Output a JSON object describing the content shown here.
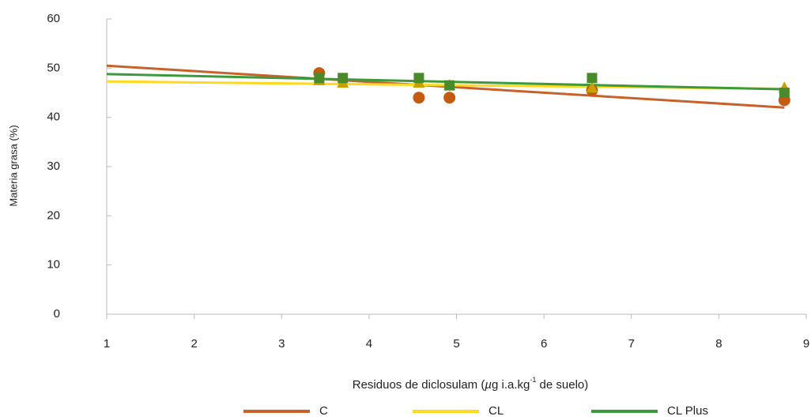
{
  "chart_data": {
    "type": "scatter",
    "x_label_parts": [
      "Residuos de diclosulam (",
      "µ",
      "g i.a.kg",
      "-1",
      " de suelo)"
    ],
    "y_label": "Materia grasa (%)",
    "xlim": [
      1,
      9
    ],
    "xticks": [
      1,
      2,
      3,
      4,
      5,
      6,
      7,
      8,
      9
    ],
    "ylim": [
      0,
      60
    ],
    "yticks": [
      0,
      10,
      20,
      30,
      40,
      50,
      60
    ],
    "grid": false,
    "legend": "bottom",
    "series": [
      {
        "name": "C",
        "color": "#c8612a",
        "marker_color": "#c55a11",
        "marker": "circle",
        "x": [
          3.43,
          4.57,
          4.92,
          6.55,
          8.75
        ],
        "values": [
          49,
          44,
          44,
          45.5,
          43.5
        ],
        "trend_x": [
          1,
          8.75
        ],
        "trend_y": [
          50.5,
          42
        ]
      },
      {
        "name": "CL",
        "color": "#ffd81f",
        "marker_color": "#c9a000",
        "marker": "triangle",
        "x": [
          3.43,
          3.7,
          4.57,
          4.92,
          6.55,
          8.75
        ],
        "values": [
          47.5,
          47,
          47,
          46.5,
          46,
          46
        ],
        "trend_x": [
          1,
          8.75
        ],
        "trend_y": [
          47.3,
          45.8
        ]
      },
      {
        "name": "CL Plus",
        "color": "#3c9a3c",
        "marker_color": "#4a8a2a",
        "marker": "square",
        "x": [
          3.43,
          3.7,
          4.57,
          4.92,
          6.55,
          8.75
        ],
        "values": [
          48,
          48,
          48,
          46.5,
          48,
          45
        ],
        "trend_x": [
          1,
          8.75
        ],
        "trend_y": [
          48.8,
          45.7
        ]
      }
    ]
  }
}
